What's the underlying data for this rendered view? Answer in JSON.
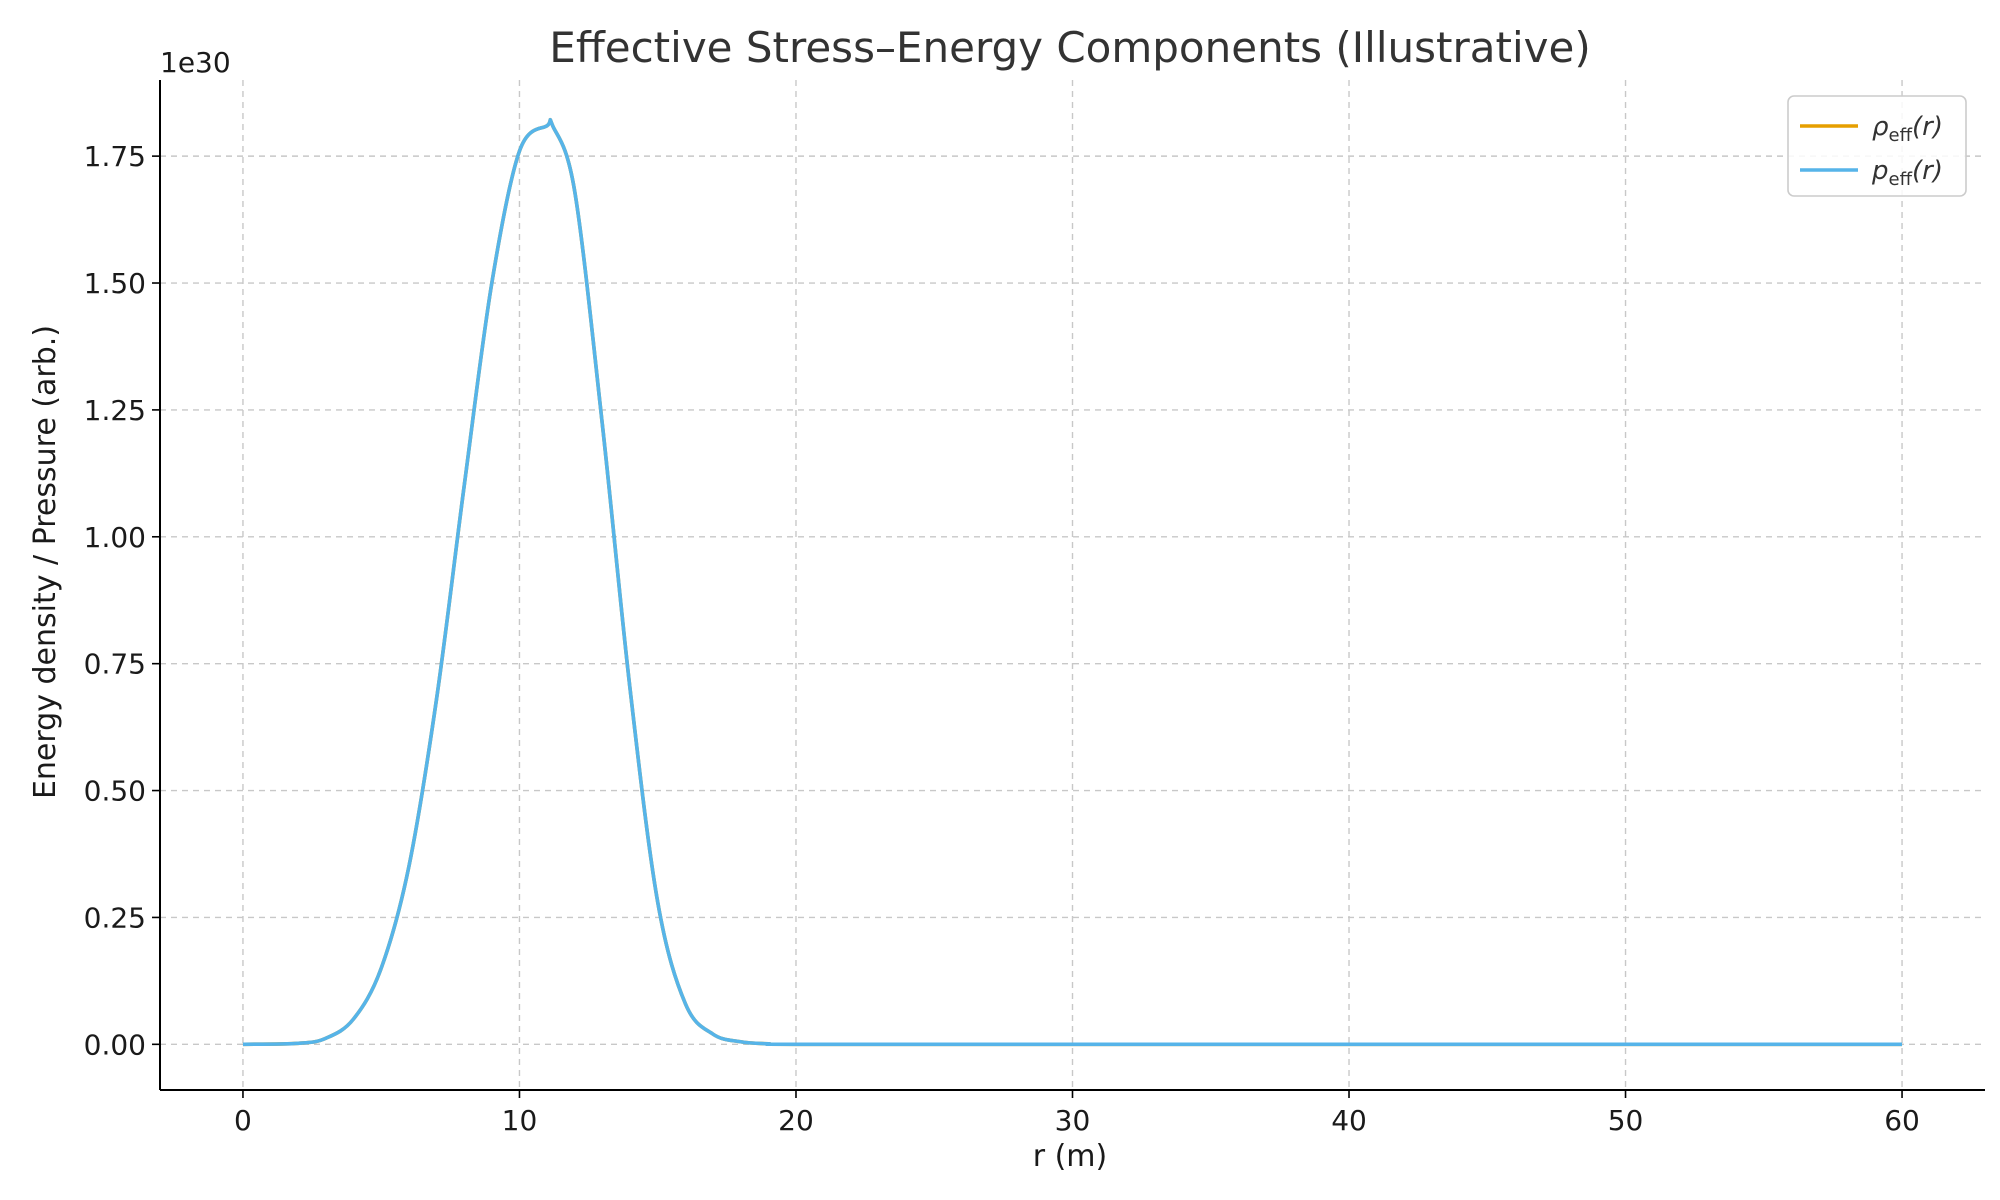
{
  "chart_data": {
    "type": "line",
    "title": "Effective Stress–Energy Components (Illustrative)",
    "xlabel": "r (m)",
    "ylabel": "Energy density / Pressure (arb.)",
    "y_offset_label": "1e30",
    "xlim": [
      -3,
      63
    ],
    "ylim": [
      -0.09,
      1.9
    ],
    "xticks": [
      0,
      10,
      20,
      30,
      40,
      50,
      60
    ],
    "xtick_labels": [
      "0",
      "10",
      "20",
      "30",
      "40",
      "50",
      "60"
    ],
    "yticks": [
      0.0,
      0.25,
      0.5,
      0.75,
      1.0,
      1.25,
      1.5,
      1.75
    ],
    "ytick_labels": [
      "0.00",
      "0.25",
      "0.50",
      "0.75",
      "1.00",
      "1.25",
      "1.50",
      "1.75"
    ],
    "grid": true,
    "legend_position": "top-right",
    "x": [
      0,
      2,
      3,
      4,
      5,
      6,
      7,
      8,
      9,
      10,
      11,
      11.2,
      12,
      13,
      14,
      15,
      16,
      17,
      18,
      19,
      20,
      30,
      40,
      50,
      60
    ],
    "series": [
      {
        "name": "ρ_eff(r)",
        "name_main": "ρ",
        "name_sub": "eff",
        "name_arg": "(r)",
        "color": "#e69f00",
        "values": [
          0.0,
          0.002,
          0.012,
          0.05,
          0.15,
          0.35,
          0.68,
          1.1,
          1.5,
          1.76,
          1.81,
          1.81,
          1.68,
          1.22,
          0.7,
          0.28,
          0.08,
          0.02,
          0.005,
          0.001,
          0.0,
          0.0,
          0.0,
          0.0,
          0.0
        ]
      },
      {
        "name": "p_eff(r)",
        "name_main": "p",
        "name_sub": "eff",
        "name_arg": "(r)",
        "color": "#56b4e9",
        "values": [
          0.0,
          0.002,
          0.012,
          0.05,
          0.15,
          0.35,
          0.68,
          1.1,
          1.5,
          1.76,
          1.81,
          1.81,
          1.68,
          1.22,
          0.7,
          0.28,
          0.08,
          0.02,
          0.005,
          0.001,
          0.0,
          0.0,
          0.0,
          0.0,
          0.0
        ]
      }
    ]
  }
}
